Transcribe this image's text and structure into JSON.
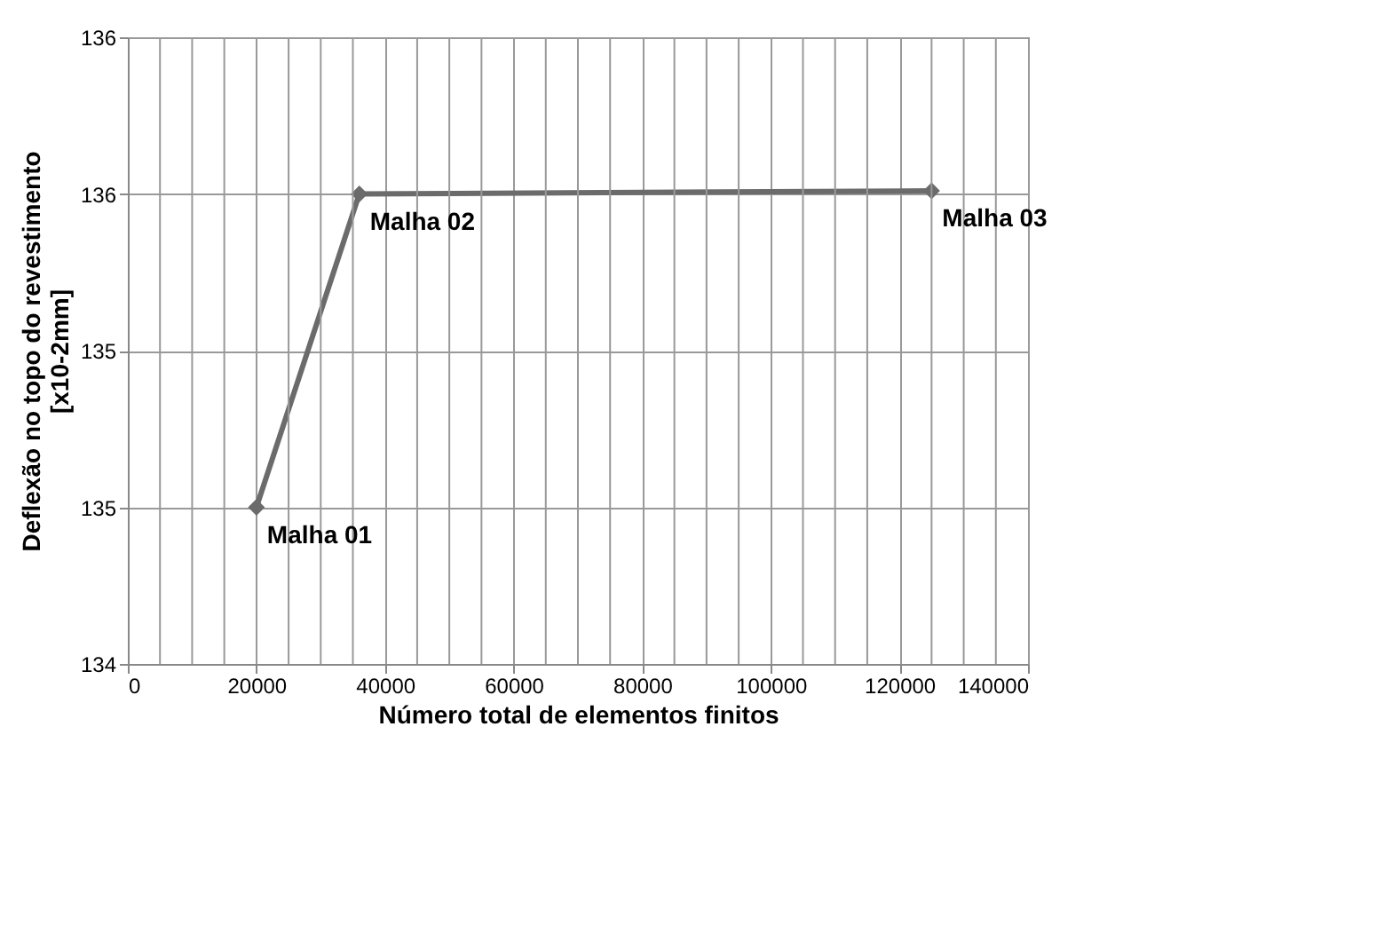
{
  "chart_data": {
    "type": "line",
    "xlabel": "Número total de elementos finitos",
    "ylabel": "Deflexão no topo do revestimento [x10-2mm]",
    "x": [
      20000,
      36000,
      125000
    ],
    "series": [
      {
        "color": "#6b6b6b",
        "values": [
          134.5,
          135.5,
          135.51
        ]
      }
    ],
    "xlim": [
      0,
      140000
    ],
    "xticks": [
      0,
      {
        "value": 5000,
        "label": null
      },
      {
        "value": 10000,
        "label": null
      },
      {
        "value": 15000,
        "label": null
      },
      20000,
      {
        "value": 25000,
        "label": null
      },
      {
        "value": 30000,
        "label": null
      },
      {
        "value": 35000,
        "label": null
      },
      40000,
      {
        "value": 45000,
        "label": null
      },
      {
        "value": 50000,
        "label": null
      },
      {
        "value": 55000,
        "label": null
      },
      60000,
      {
        "value": 65000,
        "label": null
      },
      {
        "value": 70000,
        "label": null
      },
      {
        "value": 75000,
        "label": null
      },
      80000,
      {
        "value": 85000,
        "label": null
      },
      {
        "value": 90000,
        "label": null
      },
      {
        "value": 95000,
        "label": null
      },
      100000,
      {
        "value": 105000,
        "label": null
      },
      {
        "value": 110000,
        "label": null
      },
      {
        "value": 115000,
        "label": null
      },
      120000,
      {
        "value": 125000,
        "label": null
      },
      {
        "value": 130000,
        "label": null
      },
      {
        "value": 135000,
        "label": null
      },
      140000
    ],
    "ylim": [
      134,
      136
    ],
    "yticks": [
      134,
      {
        "value": 134.5,
        "label": "135"
      },
      135,
      {
        "value": 135.5,
        "label": "136"
      },
      136
    ],
    "grid": true,
    "marker": "diamond",
    "line_style": "solid",
    "annotations": [
      {
        "text": "Malha 01",
        "x": 20000,
        "y": 134.5
      },
      {
        "text": "Malha 02",
        "x": 36000,
        "y": 135.5
      },
      {
        "text": "Malha 03",
        "x": 125000,
        "y": 135.51
      }
    ]
  }
}
